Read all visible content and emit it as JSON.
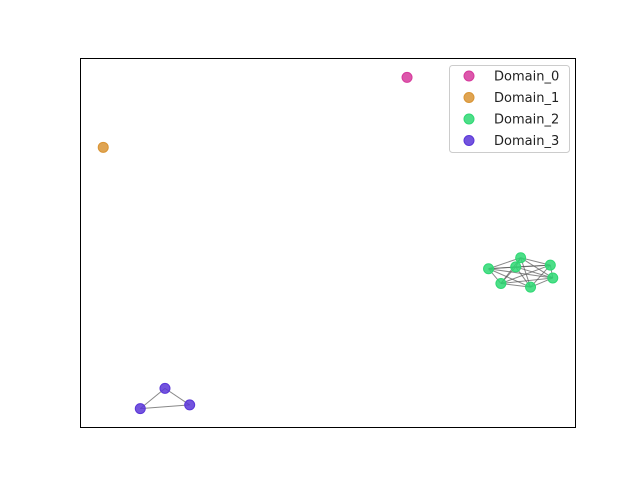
{
  "chart_data": {
    "type": "scatter",
    "title": "",
    "xlabel": "",
    "ylabel": "",
    "xlim": [
      0,
      100
    ],
    "ylim": [
      0,
      100
    ],
    "grid": false,
    "axis_ticks": false,
    "legend_position": "top-right",
    "series": [
      {
        "name": "Domain_0",
        "color": "#d63a9c",
        "points": [
          [
            66,
            95
          ]
        ],
        "edges": []
      },
      {
        "name": "Domain_1",
        "color": "#d99434",
        "points": [
          [
            4.5,
            76
          ]
        ],
        "edges": []
      },
      {
        "name": "Domain_2",
        "color": "#2ed873",
        "points": [
          [
            82.5,
            43
          ],
          [
            89,
            46
          ],
          [
            95,
            44
          ],
          [
            95.5,
            40.5
          ],
          [
            91,
            38
          ],
          [
            85,
            39
          ],
          [
            88,
            43.5
          ]
        ],
        "edges": [
          [
            0,
            1
          ],
          [
            0,
            2
          ],
          [
            0,
            3
          ],
          [
            0,
            4
          ],
          [
            0,
            5
          ],
          [
            0,
            6
          ],
          [
            1,
            2
          ],
          [
            1,
            3
          ],
          [
            1,
            4
          ],
          [
            1,
            5
          ],
          [
            1,
            6
          ],
          [
            2,
            3
          ],
          [
            2,
            4
          ],
          [
            2,
            5
          ],
          [
            2,
            6
          ],
          [
            3,
            4
          ],
          [
            3,
            5
          ],
          [
            3,
            6
          ],
          [
            4,
            5
          ],
          [
            4,
            6
          ],
          [
            5,
            6
          ]
        ]
      },
      {
        "name": "Domain_3",
        "color": "#5a36d8",
        "points": [
          [
            17,
            10.5
          ],
          [
            12,
            5
          ],
          [
            22,
            6
          ]
        ],
        "edges": [
          [
            0,
            1
          ],
          [
            1,
            2
          ],
          [
            0,
            2
          ]
        ]
      }
    ]
  }
}
